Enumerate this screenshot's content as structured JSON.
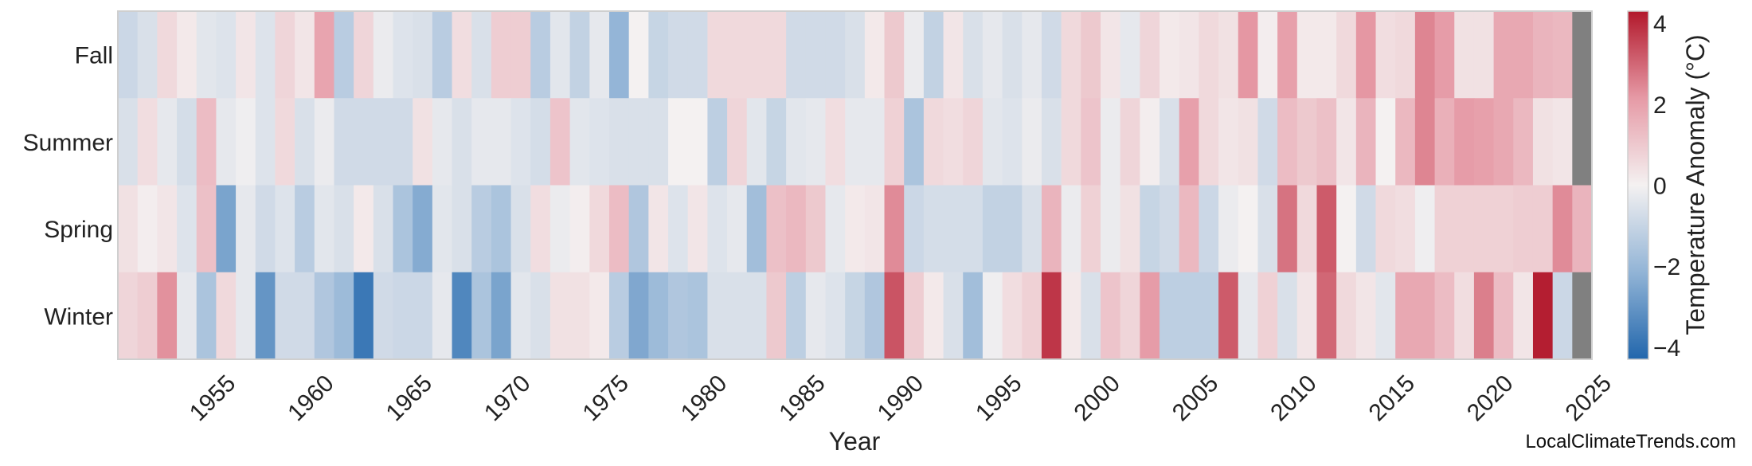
{
  "chart_data": {
    "type": "heatmap",
    "xlabel": "Year",
    "colorbar_label": "Temperature Anomaly (°C)",
    "x_start": 1951,
    "x_end": 2025,
    "x_ticks": [
      "1955",
      "1960",
      "1965",
      "1970",
      "1975",
      "1980",
      "1985",
      "1990",
      "1995",
      "2000",
      "2005",
      "2010",
      "2015",
      "2020",
      "2025"
    ],
    "rows": [
      "Fall",
      "Summer",
      "Spring",
      "Winter"
    ],
    "colorbar_ticks": [
      "4",
      "2",
      "0",
      "−2",
      "−4"
    ],
    "vmin": -4.3,
    "vmax": 4.3,
    "colormap": [
      "#2166ac",
      "#92b4d6",
      "#f4f1f1",
      "#e69aa6",
      "#b2182b"
    ],
    "missing_color": "#808080",
    "values": [
      [
        -0.9,
        -0.6,
        0.6,
        0.2,
        -0.4,
        -0.5,
        0.3,
        -0.5,
        0.7,
        0.3,
        1.9,
        -1.3,
        0.7,
        -0.2,
        -0.5,
        -0.6,
        -1.3,
        0.5,
        -0.6,
        0.9,
        0.9,
        -1.3,
        -0.4,
        -1.1,
        -0.3,
        -2.1,
        0.0,
        -1.0,
        -0.8,
        -0.8,
        0.6,
        0.6,
        0.6,
        0.6,
        -0.8,
        -0.8,
        -0.8,
        -0.6,
        0.2,
        1.0,
        -0.2,
        -1.1,
        0.3,
        -0.6,
        -0.3,
        -0.6,
        -0.3,
        -0.8,
        0.6,
        1.0,
        0.3,
        -0.3,
        0.7,
        0.2,
        0.3,
        0.6,
        0.4,
        2.2,
        0.1,
        2.0,
        0.2,
        0.2,
        0.6,
        2.2,
        0.5,
        0.6,
        2.5,
        2.1,
        0.4,
        0.4,
        1.8,
        1.8,
        1.5,
        1.4,
        null
      ],
      [
        -0.6,
        0.5,
        -0.3,
        -0.7,
        1.3,
        -0.3,
        -0.1,
        -0.5,
        0.6,
        -0.6,
        -0.2,
        -0.8,
        -0.8,
        -0.8,
        -0.8,
        0.4,
        -0.3,
        -0.6,
        -0.3,
        -0.3,
        -0.5,
        -0.7,
        1.1,
        -0.4,
        -0.5,
        -0.6,
        -0.6,
        -0.6,
        0.0,
        0.0,
        -1.2,
        0.7,
        -0.4,
        -1.0,
        -0.4,
        -0.3,
        0.5,
        -0.3,
        -0.3,
        0.8,
        -1.6,
        0.6,
        0.5,
        0.7,
        -0.4,
        -0.5,
        -0.2,
        -0.6,
        0.6,
        1.1,
        -0.2,
        0.7,
        0.1,
        -0.6,
        2.0,
        0.6,
        0.3,
        0.4,
        -0.8,
        1.3,
        1.0,
        1.2,
        0.3,
        1.5,
        0.0,
        1.4,
        2.5,
        1.6,
        2.1,
        2.0,
        1.8,
        1.4,
        0.4,
        0.3,
        null
      ],
      [
        0.4,
        0.1,
        0.3,
        -0.5,
        1.2,
        -2.6,
        -0.3,
        -0.8,
        -0.5,
        -1.3,
        -0.4,
        -0.6,
        0.2,
        -0.6,
        -1.6,
        -2.4,
        -0.4,
        -0.6,
        -1.3,
        -1.6,
        -0.6,
        0.5,
        -0.2,
        0.1,
        0.6,
        1.3,
        -1.5,
        0.3,
        -0.5,
        0.3,
        -0.5,
        -0.3,
        -1.8,
        1.2,
        1.4,
        1.0,
        -0.3,
        0.2,
        0.3,
        2.4,
        -0.9,
        -0.7,
        -0.7,
        -0.7,
        -1.1,
        -1.1,
        -0.6,
        1.5,
        -0.2,
        0.8,
        -0.2,
        0.4,
        -1.0,
        -0.8,
        1.4,
        -0.9,
        -0.2,
        0.0,
        -0.6,
        2.8,
        0.6,
        3.2,
        0.0,
        -0.8,
        0.6,
        0.5,
        -0.1,
        0.8,
        0.8,
        0.8,
        0.8,
        0.9,
        0.9,
        2.4,
        1.5
      ],
      [
        0.7,
        0.9,
        2.3,
        -0.3,
        -1.6,
        0.6,
        -0.3,
        -3.0,
        -0.8,
        -0.8,
        -1.5,
        -1.9,
        -3.8,
        -0.8,
        -0.9,
        -0.9,
        -0.3,
        -3.4,
        -1.6,
        -2.6,
        -0.4,
        -0.6,
        0.4,
        0.4,
        0.2,
        -1.3,
        -2.5,
        -1.9,
        -1.5,
        -1.6,
        -0.6,
        -0.6,
        -0.6,
        1.0,
        -1.2,
        -0.3,
        -0.5,
        -1.0,
        -1.5,
        3.3,
        0.9,
        0.2,
        -0.6,
        -1.8,
        -0.1,
        0.5,
        0.8,
        3.8,
        0.2,
        -0.6,
        1.1,
        0.7,
        2.1,
        -1.2,
        -1.2,
        -1.2,
        3.2,
        -0.3,
        0.8,
        -0.6,
        0.3,
        3.0,
        0.6,
        0.3,
        -0.4,
        1.8,
        1.8,
        1.3,
        0.5,
        2.6,
        1.3,
        0.3,
        4.2,
        -0.9,
        null
      ]
    ]
  },
  "footer": {
    "credit": "LocalClimateTrends.com"
  }
}
